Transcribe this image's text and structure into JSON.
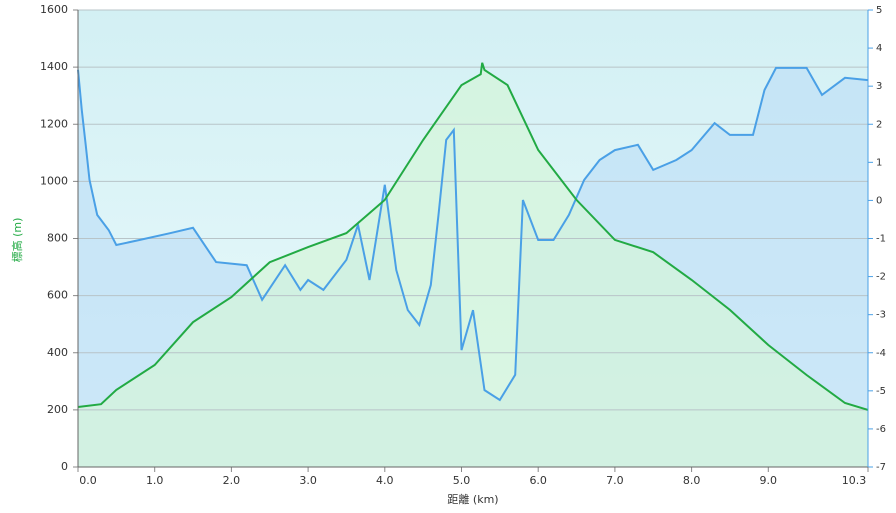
{
  "chart_data": {
    "type": "line",
    "x_label": "距離 (km)",
    "y_label": "標高 (m)",
    "xlim": [
      0,
      10.3
    ],
    "xticks": [
      {
        "value": 0,
        "label": "0.0"
      },
      {
        "value": 1,
        "label": "1.0"
      },
      {
        "value": 2,
        "label": "2.0"
      },
      {
        "value": 3,
        "label": "3.0"
      },
      {
        "value": 4,
        "label": "4.0"
      },
      {
        "value": 5,
        "label": "5.0"
      },
      {
        "value": 6,
        "label": "6.0"
      },
      {
        "value": 7,
        "label": "7.0"
      },
      {
        "value": 8,
        "label": "8.0"
      },
      {
        "value": 9,
        "label": "9.0"
      },
      10.3
    ],
    "ylim": [
      0,
      1600
    ],
    "yticks": [
      0,
      200,
      400,
      600,
      800,
      1000,
      1200,
      1400,
      1600
    ],
    "y2lim": [
      -7,
      5
    ],
    "y2ticks": [
      -7,
      -6,
      -5,
      -4,
      -3,
      -2,
      -1,
      0,
      1,
      2,
      3,
      4,
      5
    ],
    "grid": true,
    "series": [
      {
        "color": "#22aa44",
        "fill": "#d4f5d8",
        "x": [
          0,
          0.3,
          0.5,
          1.0,
          1.5,
          2.0,
          2.5,
          3.0,
          3.5,
          4.0,
          4.5,
          5.0,
          5.25,
          5.27,
          5.3,
          5.6,
          6.0,
          6.5,
          7.0,
          7.5,
          8.0,
          8.5,
          9.0,
          9.5,
          10.0,
          10.3
        ],
        "values": [
          210,
          220,
          270,
          357,
          507,
          595,
          717,
          770,
          819,
          935,
          1145,
          1337,
          1375,
          1415,
          1390,
          1337,
          1110,
          935,
          795,
          752,
          655,
          550,
          427,
          322,
          224,
          200
        ]
      },
      {
        "color": "#4aa0e6",
        "fill": "#bfe0f7",
        "axis": "y2",
        "x": [
          0,
          0.05,
          0.1,
          0.15,
          0.25,
          0.4,
          0.5,
          0.8,
          1.2,
          1.5,
          1.8,
          2.2,
          2.4,
          2.7,
          2.9,
          3.0,
          3.2,
          3.5,
          3.65,
          3.8,
          4.0,
          4.15,
          4.3,
          4.45,
          4.6,
          4.7,
          4.8,
          4.9,
          5.0,
          5.15,
          5.3,
          5.5,
          5.7,
          5.8,
          6.0,
          6.2,
          6.4,
          6.6,
          6.8,
          7.0,
          7.3,
          7.5,
          7.8,
          8.0,
          8.3,
          8.5,
          8.8,
          8.95,
          9.1,
          9.5,
          9.7,
          10.0,
          10.3
        ],
        "values": [
          3.43,
          2.37,
          1.46,
          0.54,
          -0.38,
          -0.78,
          -1.17,
          -1.04,
          -0.86,
          -0.72,
          -1.62,
          -1.7,
          -2.61,
          -1.7,
          -2.35,
          -2.09,
          -2.35,
          -1.56,
          -0.64,
          -2.09,
          0.41,
          -1.83,
          -2.88,
          -3.27,
          -2.22,
          -0.38,
          1.59,
          1.85,
          -3.93,
          -2.88,
          -4.98,
          -5.24,
          -4.58,
          0.01,
          -1.04,
          -1.04,
          -0.38,
          0.54,
          1.06,
          1.32,
          1.46,
          0.8,
          1.06,
          1.32,
          2.03,
          1.72,
          1.72,
          2.9,
          3.48,
          3.48,
          2.77,
          3.22,
          3.16
        ]
      }
    ]
  }
}
